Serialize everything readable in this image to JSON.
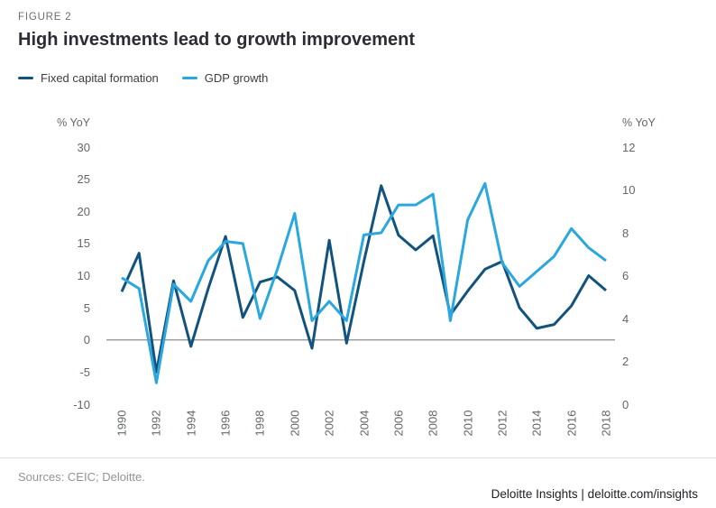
{
  "figure_label": "FIGURE 2",
  "title": "High investments lead to growth improvement",
  "legend": [
    {
      "label": "Fixed capital formation",
      "color": "#12537e"
    },
    {
      "label": "GDP growth",
      "color": "#2aa7de"
    }
  ],
  "axes": {
    "left_unit": "% YoY",
    "right_unit": "% YoY",
    "left_ticks": [
      30,
      25,
      20,
      15,
      10,
      5,
      0,
      -5,
      -10
    ],
    "right_ticks": [
      12,
      10,
      8,
      6,
      4,
      2,
      0
    ]
  },
  "chart_data": {
    "type": "line",
    "x": [
      1990,
      1991,
      1992,
      1993,
      1994,
      1995,
      1996,
      1997,
      1998,
      1999,
      2000,
      2001,
      2002,
      2003,
      2004,
      2005,
      2006,
      2007,
      2008,
      2009,
      2010,
      2011,
      2012,
      2013,
      2014,
      2015,
      2016,
      2017,
      2018
    ],
    "x_tick_labels": [
      "1990",
      "1992",
      "1994",
      "1996",
      "1998",
      "2000",
      "2002",
      "2004",
      "2006",
      "2008",
      "2010",
      "2012",
      "2014",
      "2016",
      "2018"
    ],
    "series": [
      {
        "name": "Fixed capital formation",
        "axis": "left",
        "color": "#12537e",
        "values": [
          7.5,
          13.5,
          -5.0,
          9.2,
          -1.0,
          8.0,
          16.1,
          3.5,
          9.0,
          9.8,
          7.7,
          -1.3,
          15.5,
          -0.5,
          12.2,
          24.0,
          16.3,
          14.0,
          16.2,
          3.9,
          7.6,
          11.0,
          12.2,
          5.0,
          1.8,
          2.4,
          5.3,
          10.0,
          7.7
        ]
      },
      {
        "name": "GDP growth",
        "axis": "right",
        "color": "#2aa7de",
        "values": [
          5.9,
          5.4,
          1.0,
          5.6,
          4.8,
          6.7,
          7.6,
          7.5,
          4.0,
          6.3,
          8.9,
          3.9,
          4.8,
          3.9,
          7.9,
          8.0,
          9.3,
          9.3,
          9.8,
          3.9,
          8.6,
          10.3,
          6.6,
          5.5,
          6.2,
          6.9,
          8.2,
          7.3,
          6.7
        ]
      }
    ],
    "left_ylim": [
      -10,
      30
    ],
    "right_ylim": [
      0,
      12
    ],
    "zero_line": true,
    "grid": false,
    "legend_position": "top-left"
  },
  "footer": {
    "sources": "Sources: CEIC; Deloitte.",
    "brand": "Deloitte Insights | deloitte.com/insights"
  }
}
